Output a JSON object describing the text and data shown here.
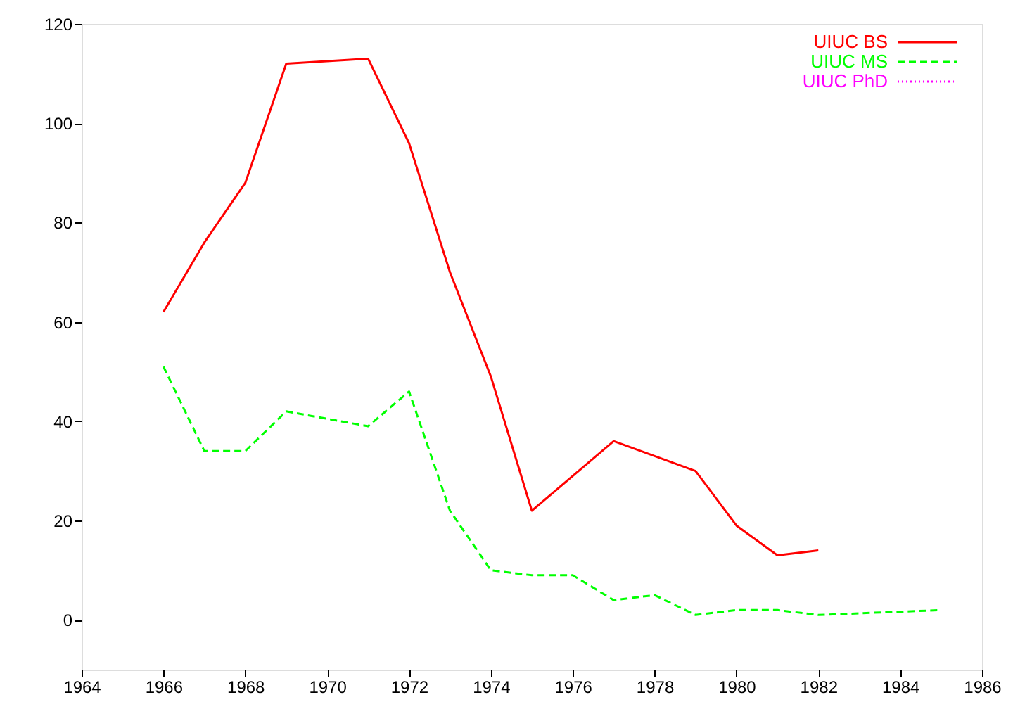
{
  "chart_data": {
    "type": "line",
    "xlim": [
      1964,
      1986
    ],
    "xticks": [
      1964,
      1966,
      1968,
      1970,
      1972,
      1974,
      1976,
      1978,
      1980,
      1982,
      1984,
      1986
    ],
    "ylim": [
      -10,
      120
    ],
    "yticks": [
      0,
      20,
      40,
      60,
      80,
      100,
      120
    ],
    "grid": false,
    "legend": "top right",
    "marker": "none",
    "series": [
      {
        "name": "UIUC BS",
        "color": "#ff0000",
        "line_style": "solid",
        "x": [
          1966,
          1967,
          1968,
          1969,
          1971,
          1972,
          1973,
          1974,
          1975,
          1977,
          1979,
          1980,
          1981,
          1982
        ],
        "values": [
          62,
          76,
          88,
          112,
          113,
          96,
          70,
          49,
          22,
          36,
          30,
          19,
          13,
          14
        ]
      },
      {
        "name": "UIUC MS",
        "color": "#00ff00",
        "line_style": "dashed",
        "x": [
          1966,
          1967,
          1968,
          1969,
          1971,
          1972,
          1973,
          1974,
          1975,
          1976,
          1977,
          1978,
          1979,
          1980,
          1981,
          1982,
          1985
        ],
        "values": [
          51,
          34,
          34,
          42,
          39,
          46,
          22,
          10,
          9,
          9,
          4,
          5,
          1,
          2,
          2,
          1,
          2
        ]
      },
      {
        "name": "UIUC PhD",
        "color": "#ff00ff",
        "line_style": "dotted"
      }
    ]
  }
}
